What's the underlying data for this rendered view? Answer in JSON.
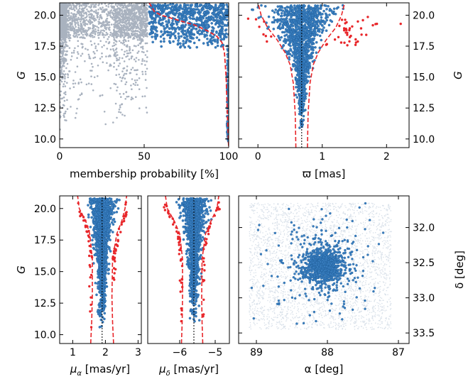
{
  "colors": {
    "members": "#3a7fc1",
    "members_edge": "#1f5e99",
    "outliers": "#e8262a",
    "field": "#a9b2bf",
    "field_light": "#d9e1ea",
    "envelope": "#e8262a",
    "median": "#000000"
  },
  "chart_data": [
    {
      "id": "prob",
      "type": "scatter",
      "xlabel": "membership probability [%]",
      "ylabel": "G",
      "xlim": [
        0,
        100
      ],
      "ylim": [
        21,
        9.3
      ],
      "yinverted": true,
      "xticks": [
        {
          "v": 0,
          "t": "0"
        },
        {
          "v": 50,
          "t": "50"
        },
        {
          "v": 100,
          "t": "100"
        }
      ],
      "yticks": [
        {
          "v": 10,
          "t": "10.0"
        },
        {
          "v": 12.5,
          "t": "12.5"
        },
        {
          "v": 15,
          "t": "15.0"
        },
        {
          "v": 17.5,
          "t": "17.5"
        },
        {
          "v": 20,
          "t": "20.0"
        }
      ],
      "ytick_side": "left",
      "series": [
        {
          "role": "field",
          "description_count": 2500
        },
        {
          "role": "members",
          "description_count": 700
        }
      ],
      "boundary": {
        "x": [
          53,
          56,
          60,
          70,
          80,
          88,
          93,
          96,
          97.5,
          98.5,
          99.2,
          100
        ],
        "y": [
          21,
          20.3,
          20.0,
          19.6,
          19.2,
          18.7,
          18.3,
          17.8,
          17.0,
          15.0,
          12.0,
          9.3
        ]
      }
    },
    {
      "id": "parallax",
      "type": "scatter",
      "xlabel": "ϖ [mas]",
      "ylabel": "G",
      "xlim": [
        -0.3,
        2.35
      ],
      "ylim": [
        21,
        9.3
      ],
      "yinverted": true,
      "xticks": [
        {
          "v": 0,
          "t": "0"
        },
        {
          "v": 1,
          "t": "1"
        },
        {
          "v": 2,
          "t": "2"
        }
      ],
      "yticks": [
        {
          "v": 10,
          "t": "10.0"
        },
        {
          "v": 12.5,
          "t": "12.5"
        },
        {
          "v": 15,
          "t": "15.0"
        },
        {
          "v": 17.5,
          "t": "17.5"
        },
        {
          "v": 20,
          "t": "20.0"
        }
      ],
      "ytick_side": "right",
      "median": 0.68,
      "envelope_left": {
        "x": [
          0.59,
          0.58,
          0.55,
          0.5,
          0.42,
          0.3,
          0.15,
          0.05,
          0.0
        ],
        "y": [
          9.3,
          12,
          14.5,
          16,
          17,
          18,
          19,
          20,
          21
        ]
      },
      "envelope_right": {
        "x": [
          0.77,
          0.78,
          0.81,
          0.86,
          0.94,
          1.06,
          1.21,
          1.3,
          1.35
        ],
        "y": [
          9.3,
          12,
          14.5,
          16,
          17,
          18,
          19,
          20,
          21
        ]
      }
    },
    {
      "id": "pmra",
      "type": "scatter",
      "xlabel": "μα [mas/yr]",
      "ylabel": "G",
      "xlim": [
        0.6,
        3.1
      ],
      "ylim": [
        21,
        9.3
      ],
      "yinverted": true,
      "xticks": [
        {
          "v": 1,
          "t": "1"
        },
        {
          "v": 2,
          "t": "2"
        },
        {
          "v": 3,
          "t": "3"
        }
      ],
      "yticks": [
        {
          "v": 10,
          "t": "10.0"
        },
        {
          "v": 12.5,
          "t": "12.5"
        },
        {
          "v": 15,
          "t": "15.0"
        },
        {
          "v": 17.5,
          "t": "17.5"
        },
        {
          "v": 20,
          "t": "20.0"
        }
      ],
      "ytick_side": "left",
      "median": 1.9,
      "envelope_left": {
        "x": [
          1.55,
          1.58,
          1.6,
          1.6,
          1.52,
          1.4,
          1.2,
          1.15
        ],
        "y": [
          9.3,
          11,
          13,
          16,
          18,
          19,
          20,
          21
        ]
      },
      "envelope_right": {
        "x": [
          2.25,
          2.22,
          2.2,
          2.22,
          2.35,
          2.5,
          2.6,
          2.65
        ],
        "y": [
          9.3,
          11,
          13,
          16,
          18,
          19,
          20,
          21
        ]
      }
    },
    {
      "id": "pmdec",
      "type": "scatter",
      "xlabel": "μδ [mas/yr]",
      "ylabel": "",
      "xlim": [
        -6.9,
        -4.6
      ],
      "ylim": [
        21,
        9.3
      ],
      "yinverted": true,
      "xticks": [
        {
          "v": -6,
          "t": "−6"
        },
        {
          "v": -5,
          "t": "−5"
        }
      ],
      "yticks": [],
      "ytick_side": "none",
      "median": -5.6,
      "envelope_left": {
        "x": [
          -5.95,
          -5.93,
          -5.92,
          -5.92,
          -6.0,
          -6.15,
          -6.35,
          -6.4
        ],
        "y": [
          9.3,
          11,
          13,
          16,
          18,
          19,
          20,
          21
        ]
      },
      "envelope_right": {
        "x": [
          -5.35,
          -5.37,
          -5.38,
          -5.37,
          -5.27,
          -5.12,
          -4.95,
          -4.9
        ],
        "y": [
          9.3,
          11,
          13,
          16,
          18,
          19,
          20,
          21
        ]
      }
    },
    {
      "id": "sky",
      "type": "scatter",
      "xlabel": "α [deg]",
      "ylabel": "δ [deg]",
      "xlim": [
        89.25,
        86.85
      ],
      "ylim": [
        31.55,
        33.65
      ],
      "xinverted": true,
      "xticks": [
        {
          "v": 89,
          "t": "89"
        },
        {
          "v": 88,
          "t": "88"
        },
        {
          "v": 87,
          "t": "87"
        }
      ],
      "yticks": [
        {
          "v": 32,
          "t": "32.0"
        },
        {
          "v": 32.5,
          "t": "32.5"
        },
        {
          "v": 33,
          "t": "33.0"
        },
        {
          "v": 33.5,
          "t": "33.5"
        }
      ],
      "ytick_side": "right",
      "field_ra": [
        87.1,
        89.1
      ],
      "field_dec": [
        31.65,
        33.45
      ],
      "center": [
        88.05,
        32.55
      ]
    }
  ]
}
